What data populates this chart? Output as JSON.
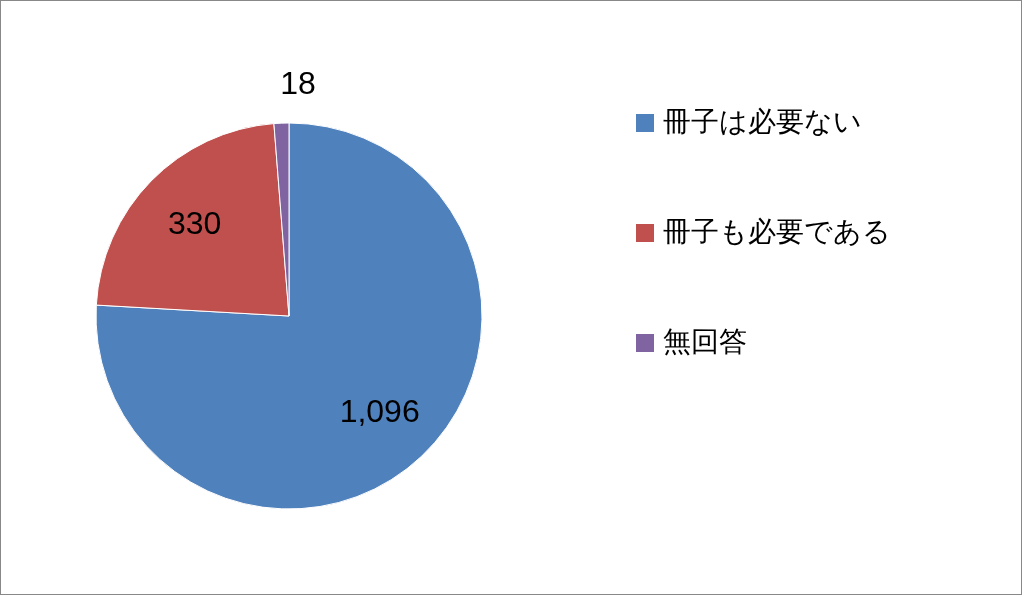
{
  "chart_data": {
    "type": "pie",
    "categories": [
      "冊子は必要ない",
      "冊子も必要である",
      "無回答"
    ],
    "values": [
      1096,
      330,
      18
    ],
    "colors": [
      "#4f81bd",
      "#c0504d",
      "#8064a2"
    ],
    "value_labels": [
      "1,096",
      "330",
      "18"
    ],
    "legend": "right"
  }
}
